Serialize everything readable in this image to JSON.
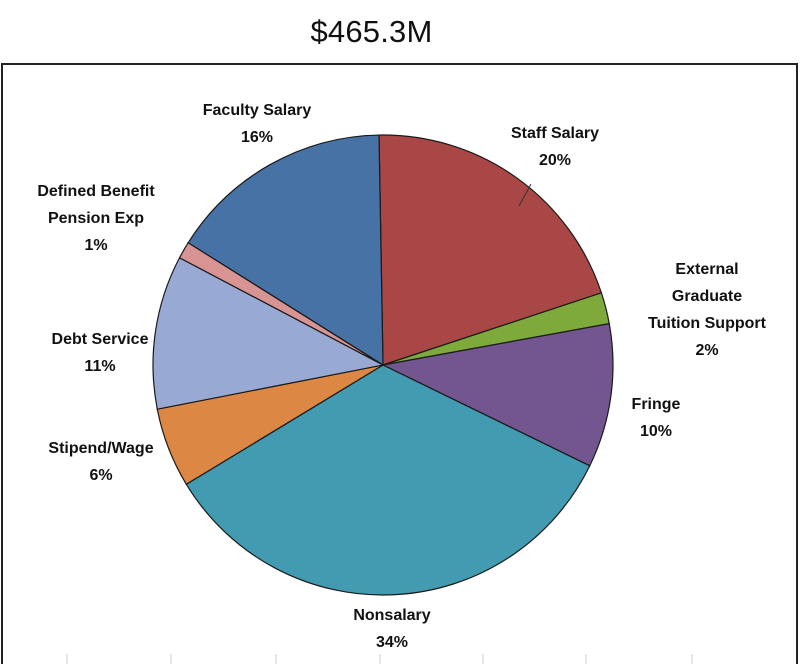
{
  "chart_data": {
    "type": "pie",
    "title": "$465.3M",
    "slices": [
      {
        "label": "Staff Salary",
        "percent_label": "20%",
        "value": 20.2,
        "color": "#A94747"
      },
      {
        "label": "External Graduate Tuition Support",
        "label_lines": [
          "External",
          "Graduate",
          "Tuition Support"
        ],
        "percent_label": "2%",
        "value": 2.2,
        "color": "#7DAA3B"
      },
      {
        "label": "Fringe",
        "percent_label": "10%",
        "value": 10.1,
        "color": "#735590"
      },
      {
        "label": "Nonsalary",
        "percent_label": "34%",
        "value": 34.1,
        "color": "#429BB1"
      },
      {
        "label": "Stipend/Wage",
        "percent_label": "6%",
        "value": 5.6,
        "color": "#DC8744"
      },
      {
        "label": "Debt Service",
        "percent_label": "11%",
        "value": 10.8,
        "color": "#98AAD3"
      },
      {
        "label": "Defined Benefit Pension Exp",
        "label_lines": [
          "Defined Benefit",
          "Pension Exp"
        ],
        "percent_label": "1%",
        "value": 1.2,
        "color": "#D89393"
      },
      {
        "label": "Faculty Salary",
        "percent_label": "16%",
        "value": 15.8,
        "color": "#4672A6"
      }
    ]
  }
}
